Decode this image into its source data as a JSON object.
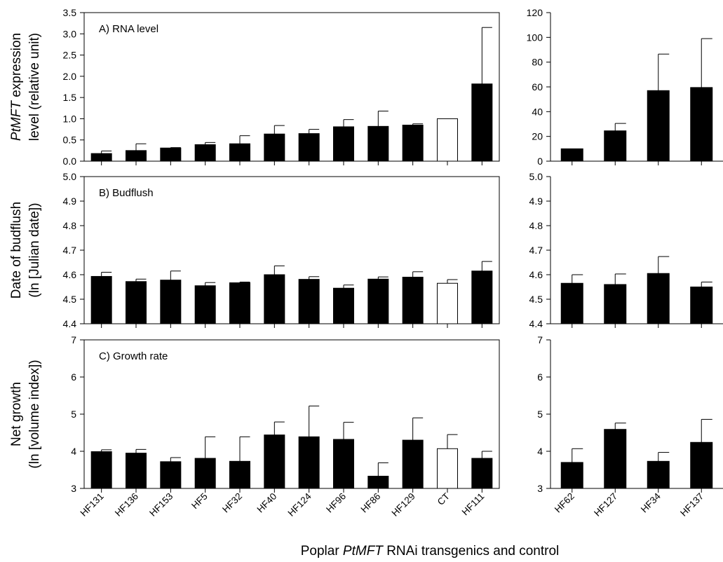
{
  "figure": {
    "xlabel_parts": [
      {
        "text": "Poplar ",
        "italic": false
      },
      {
        "text": "PtMFT",
        "italic": true
      },
      {
        "text": " RNAi transgenics and control",
        "italic": false
      }
    ]
  },
  "row_labels": [
    {
      "line1": [
        {
          "text": "PtMFT",
          "italic": true
        },
        {
          "text": " expression",
          "italic": false
        }
      ],
      "line2": "level (relative unit)"
    },
    {
      "line1": [
        {
          "text": "Date of budflush",
          "italic": false
        }
      ],
      "line2": "(ln [Julian date])"
    },
    {
      "line1": [
        {
          "text": "Net growth",
          "italic": false
        }
      ],
      "line2": "(ln [volume index])"
    }
  ],
  "colors": {
    "bar": "#000000",
    "control": "#ffffff",
    "axis": "#000000"
  },
  "chart_data": [
    {
      "type": "bar",
      "title": "A) RNA level",
      "ylim": [
        0,
        3.5
      ],
      "yticks": [
        "0.0",
        "0.5",
        "1.0",
        "1.5",
        "2.0",
        "2.5",
        "3.0",
        "3.5"
      ],
      "categories": [
        "HF131",
        "HF136",
        "HF153",
        "HF5",
        "HF32",
        "HF40",
        "HF124",
        "HF96",
        "HF86",
        "HF129",
        "CT",
        "HF111"
      ],
      "values": [
        0.18,
        0.25,
        0.31,
        0.39,
        0.41,
        0.64,
        0.65,
        0.81,
        0.82,
        0.85,
        1.0,
        1.82
      ],
      "errors": [
        0.06,
        0.16,
        0.01,
        0.05,
        0.19,
        0.2,
        0.1,
        0.17,
        0.36,
        0.03,
        0.0,
        1.33
      ],
      "open_bar": "CT"
    },
    {
      "type": "bar",
      "title": "",
      "ylim": [
        0,
        120
      ],
      "yticks": [
        "0",
        "20",
        "40",
        "60",
        "80",
        "100",
        "120"
      ],
      "categories": [
        "HF62",
        "HF127",
        "HF34",
        "HF137"
      ],
      "values": [
        10,
        24.5,
        57,
        59.5
      ],
      "errors": [
        0,
        6,
        29.5,
        39.5
      ]
    },
    {
      "type": "bar",
      "title": "B) Budflush",
      "ylim": [
        4.4,
        5.0
      ],
      "yticks": [
        "4.4",
        "4.5",
        "4.6",
        "4.7",
        "4.8",
        "4.9",
        "5.0"
      ],
      "categories": [
        "HF131",
        "HF136",
        "HF153",
        "HF5",
        "HF32",
        "HF40",
        "HF124",
        "HF96",
        "HF86",
        "HF129",
        "CT",
        "HF111"
      ],
      "values": [
        4.593,
        4.572,
        4.578,
        4.555,
        4.567,
        4.6,
        4.581,
        4.545,
        4.582,
        4.59,
        4.565,
        4.615
      ],
      "errors": [
        0.017,
        0.01,
        0.037,
        0.013,
        0.003,
        0.036,
        0.011,
        0.013,
        0.009,
        0.022,
        0.015,
        0.039
      ],
      "open_bar": "CT"
    },
    {
      "type": "bar",
      "title": "",
      "ylim": [
        4.4,
        5.0
      ],
      "yticks": [
        "4.4",
        "4.5",
        "4.6",
        "4.7",
        "4.8",
        "4.9",
        "5.0"
      ],
      "categories": [
        "HF62",
        "HF127",
        "HF34",
        "HF137"
      ],
      "values": [
        4.565,
        4.56,
        4.605,
        4.55
      ],
      "errors": [
        0.035,
        0.043,
        0.069,
        0.02
      ]
    },
    {
      "type": "bar",
      "title": "C) Growth rate",
      "ylim": [
        3,
        7
      ],
      "yticks": [
        "3",
        "4",
        "5",
        "6",
        "7"
      ],
      "categories": [
        "HF131",
        "HF136",
        "HF153",
        "HF5",
        "HF32",
        "HF40",
        "HF124",
        "HF96",
        "HF86",
        "HF129",
        "CT",
        "HF111"
      ],
      "values": [
        3.99,
        3.95,
        3.72,
        3.81,
        3.73,
        4.44,
        4.39,
        4.32,
        3.33,
        4.3,
        4.07,
        3.81
      ],
      "errors": [
        0.05,
        0.1,
        0.11,
        0.58,
        0.66,
        0.35,
        0.83,
        0.46,
        0.36,
        0.6,
        0.38,
        0.19
      ],
      "open_bar": "CT"
    },
    {
      "type": "bar",
      "title": "",
      "ylim": [
        3,
        7
      ],
      "yticks": [
        "3",
        "4",
        "5",
        "6",
        "7"
      ],
      "categories": [
        "HF62",
        "HF127",
        "HF34",
        "HF137"
      ],
      "values": [
        3.7,
        4.59,
        3.73,
        4.24
      ],
      "errors": [
        0.37,
        0.17,
        0.24,
        0.62
      ]
    }
  ]
}
